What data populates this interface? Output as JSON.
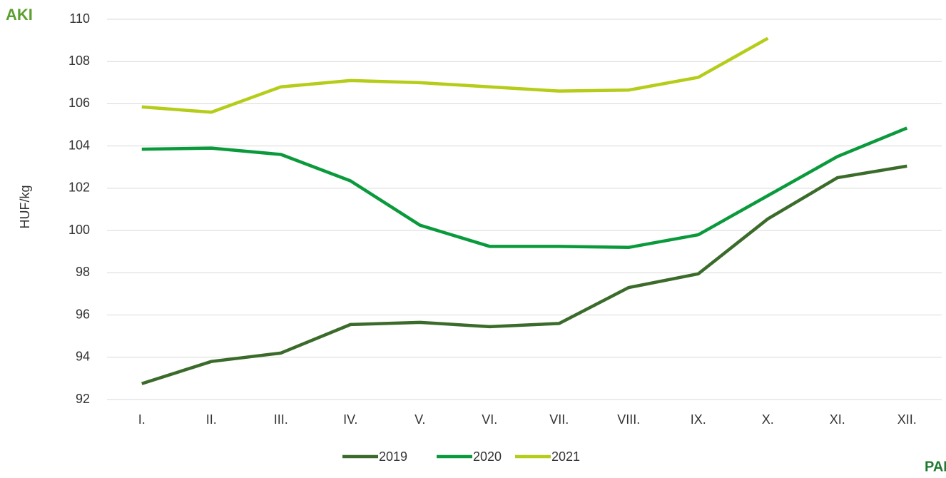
{
  "logos": [
    "AKI",
    "PAIR"
  ],
  "chart_data": {
    "type": "line",
    "y_label": "HUF/kg",
    "categories": [
      "I.",
      "II.",
      "III.",
      "IV.",
      "V.",
      "VI.",
      "VII.",
      "VIII.",
      "IX.",
      "X.",
      "XI.",
      "XII."
    ],
    "series": [
      {
        "name": "2019",
        "color": "#3b6b2a",
        "values": [
          92.75,
          93.8,
          94.2,
          95.55,
          95.65,
          95.45,
          95.6,
          97.3,
          97.95,
          100.55,
          102.5,
          103.05
        ]
      },
      {
        "name": "2020",
        "color": "#0a9a3c",
        "values": [
          103.85,
          103.9,
          103.6,
          102.35,
          100.25,
          99.25,
          99.25,
          99.2,
          99.8,
          101.65,
          103.5,
          104.85
        ]
      },
      {
        "name": "2021",
        "color": "#b5cc18",
        "values": [
          105.85,
          105.6,
          106.8,
          107.1,
          107.0,
          106.8,
          106.6,
          106.65,
          107.25,
          109.1,
          null,
          null
        ]
      }
    ],
    "ylim": [
      92,
      110
    ],
    "yticks": [
      92,
      94,
      96,
      98,
      100,
      102,
      104,
      106,
      108,
      110
    ],
    "grid": true,
    "legend": "bottom"
  }
}
